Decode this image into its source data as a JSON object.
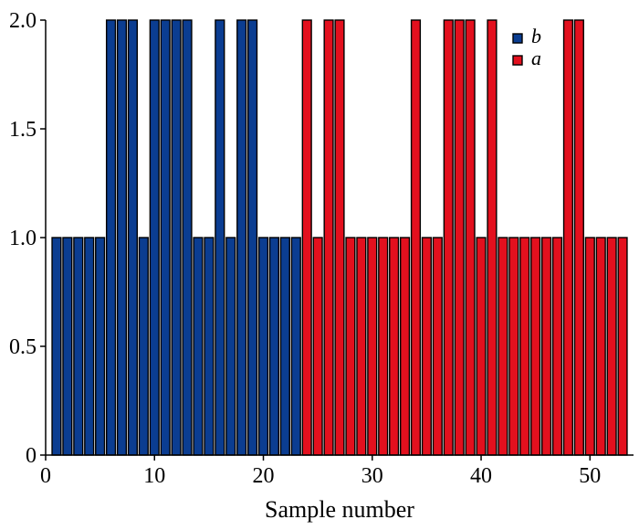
{
  "chart_data": {
    "type": "bar",
    "title": "",
    "xlabel": "Sample number",
    "ylabel": "",
    "xlim": [
      0,
      54
    ],
    "ylim": [
      0,
      2
    ],
    "xticks": [
      0,
      10,
      20,
      30,
      40,
      50
    ],
    "yticks": [
      0,
      0.5,
      1.0,
      1.5,
      2.0
    ],
    "ytick_labels": [
      "0",
      "0.5",
      "1.0",
      "1.5",
      "2.0"
    ],
    "grid": false,
    "legend_position": "top-right",
    "series": [
      {
        "name": "b",
        "color": "#0b3d91",
        "x": [
          1,
          2,
          3,
          4,
          5,
          6,
          7,
          8,
          9,
          10,
          11,
          12,
          13,
          14,
          15,
          16,
          17,
          18,
          19,
          20,
          21,
          22,
          23
        ],
        "values": [
          1,
          1,
          1,
          1,
          1,
          2,
          2,
          2,
          1,
          2,
          2,
          2,
          2,
          1,
          1,
          2,
          1,
          2,
          2,
          1,
          1,
          1,
          1
        ]
      },
      {
        "name": "a",
        "color": "#e3101e",
        "x": [
          24,
          25,
          26,
          27,
          28,
          29,
          30,
          31,
          32,
          33,
          34,
          35,
          36,
          37,
          38,
          39,
          40,
          41,
          42,
          43,
          44,
          45,
          46,
          47,
          48,
          49,
          50,
          51,
          52,
          53
        ],
        "values": [
          2,
          1,
          2,
          2,
          1,
          1,
          1,
          1,
          1,
          1,
          2,
          1,
          1,
          2,
          2,
          2,
          1,
          2,
          1,
          1,
          1,
          1,
          1,
          1,
          2,
          2,
          1,
          1,
          1,
          1
        ]
      }
    ]
  }
}
